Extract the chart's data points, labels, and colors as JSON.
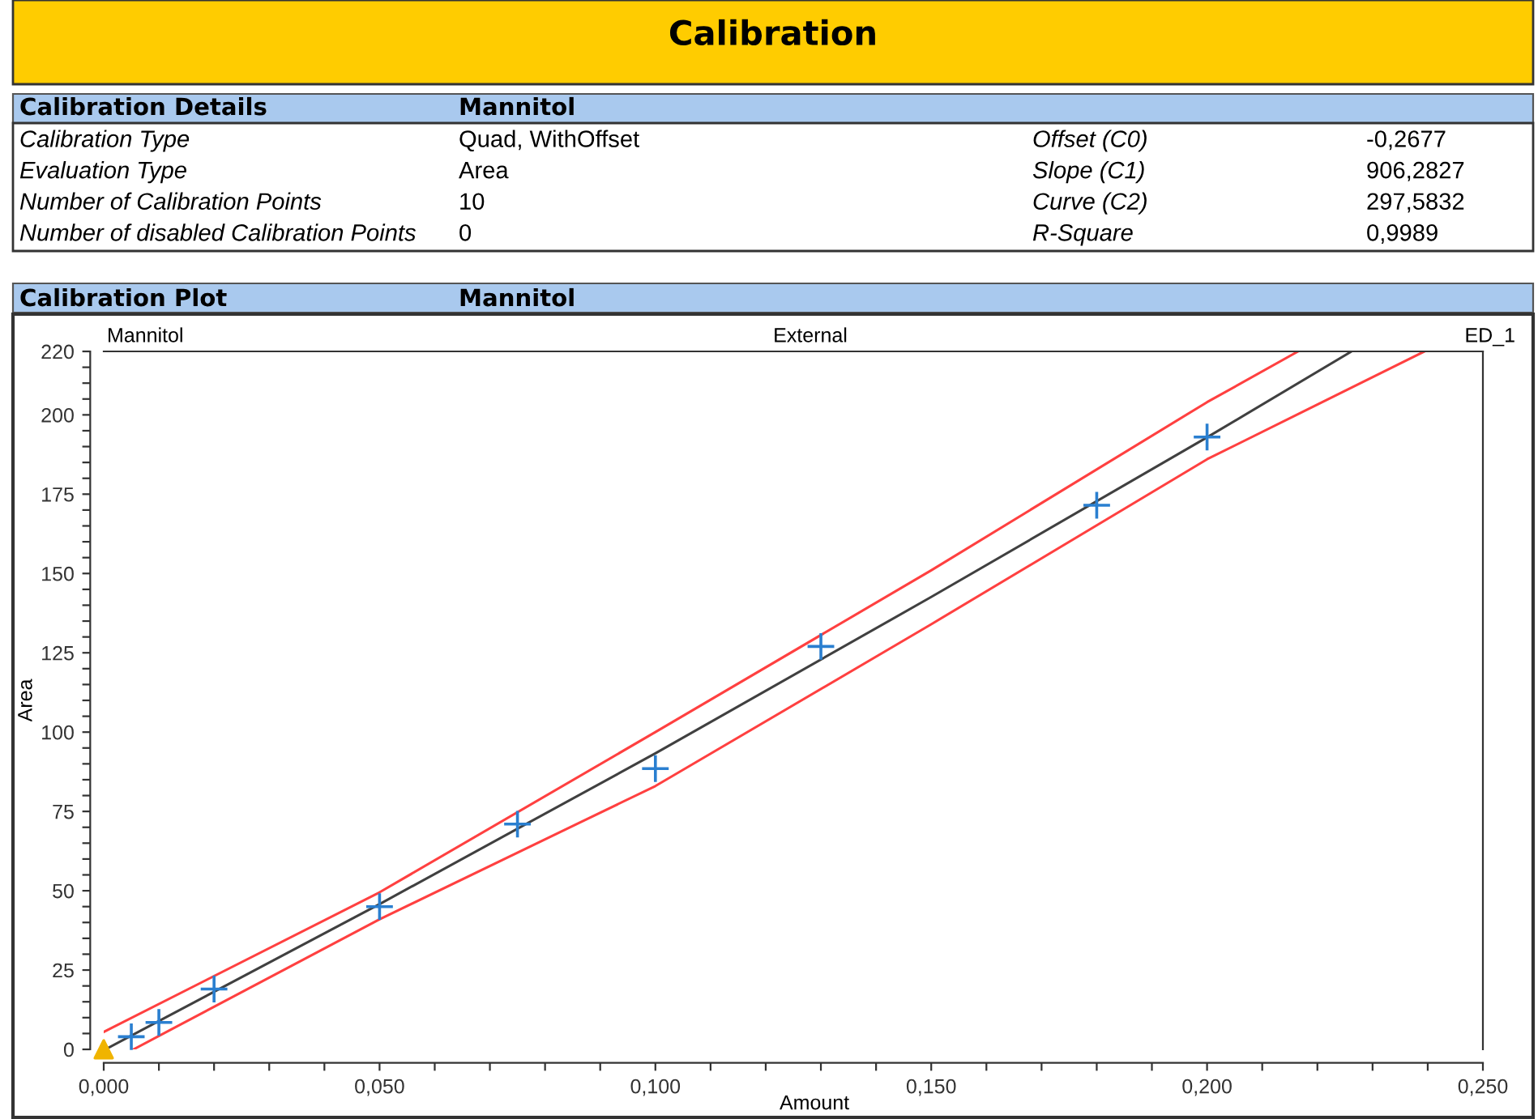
{
  "chart_data": {
    "type": "scatter",
    "title": "Calibration",
    "xlabel": "Amount",
    "ylabel": "Area",
    "annotations": [
      "Calibration Details",
      "Mannitol",
      "Calibration Type",
      "Quad, WithOffset",
      "Offset (C0)",
      "-0,2677",
      "Evaluation Type",
      "Area",
      "Slope (C1)",
      "906,2827",
      "Number of Calibration Points",
      "10",
      "Curve (C2)",
      "297,5832",
      "Number of disabled Calibration Points",
      "0",
      "R-Square",
      "0,9989",
      "Calibration Plot",
      "Mannitol",
      "Mannitol",
      "External",
      "ED_1"
    ],
    "series": [
      {
        "type": "line",
        "color": "#ff4040",
        "marker": "none",
        "x": [
          0,
          0.05,
          0.1,
          0.15,
          0.2,
          0.2165
        ],
        "values": [
          5.5,
          49.5,
          100,
          151,
          204,
          220
        ]
      },
      {
        "type": "line",
        "color": "#ff4040",
        "marker": "none",
        "x": [
          0.0054,
          0.05,
          0.1,
          0.15,
          0.2,
          0.2394
        ],
        "values": [
          0,
          41,
          83,
          134,
          186,
          220
        ]
      },
      {
        "type": "line",
        "color": "#404040",
        "marker": "none",
        "x": [
          0.0003,
          0.05,
          0.1,
          0.15,
          0.2,
          0.226
        ],
        "values": [
          0,
          45.8,
          93.3,
          142.6,
          192.9,
          219.8
        ]
      },
      {
        "color": "#2a7fd0",
        "marker": "cross",
        "x": [
          0.005,
          0.01,
          0.02,
          0.05,
          0.075,
          0.1,
          0.13,
          0.18,
          0.2
        ],
        "values": [
          4,
          8.5,
          19,
          45,
          71,
          88.5,
          127,
          171.5,
          193
        ]
      },
      {
        "color": "#f0b400",
        "marker": "triangle",
        "x": [
          0
        ],
        "values": [
          0
        ]
      }
    ],
    "xlim": [
      0,
      0.25
    ],
    "ylim": [
      0,
      220
    ],
    "xticks": [
      {
        "value": 0,
        "label": "0,000"
      },
      {
        "value": 0.01,
        "label": null
      },
      {
        "value": 0.02,
        "label": null
      },
      {
        "value": 0.03,
        "label": null
      },
      {
        "value": 0.04,
        "label": null
      },
      {
        "value": 0.05,
        "label": "0,050"
      },
      {
        "value": 0.06,
        "label": null
      },
      {
        "value": 0.07,
        "label": null
      },
      {
        "value": 0.08,
        "label": null
      },
      {
        "value": 0.09,
        "label": null
      },
      {
        "value": 0.1,
        "label": "0,100"
      },
      {
        "value": 0.11,
        "label": null
      },
      {
        "value": 0.12,
        "label": null
      },
      {
        "value": 0.13,
        "label": null
      },
      {
        "value": 0.14,
        "label": null
      },
      {
        "value": 0.15,
        "label": "0,150"
      },
      {
        "value": 0.16,
        "label": null
      },
      {
        "value": 0.17,
        "label": null
      },
      {
        "value": 0.18,
        "label": null
      },
      {
        "value": 0.19,
        "label": null
      },
      {
        "value": 0.2,
        "label": "0,200"
      },
      {
        "value": 0.21,
        "label": null
      },
      {
        "value": 0.22,
        "label": null
      },
      {
        "value": 0.23,
        "label": null
      },
      {
        "value": 0.24,
        "label": null
      },
      {
        "value": 0.25,
        "label": "0,250"
      }
    ],
    "yticks": [
      0,
      {
        "value": 5,
        "label": null
      },
      {
        "value": 10,
        "label": null
      },
      {
        "value": 15,
        "label": null
      },
      {
        "value": 20,
        "label": null
      },
      25,
      {
        "value": 30,
        "label": null
      },
      {
        "value": 35,
        "label": null
      },
      {
        "value": 40,
        "label": null
      },
      {
        "value": 45,
        "label": null
      },
      50,
      {
        "value": 55,
        "label": null
      },
      {
        "value": 60,
        "label": null
      },
      {
        "value": 65,
        "label": null
      },
      {
        "value": 70,
        "label": null
      },
      75,
      {
        "value": 80,
        "label": null
      },
      {
        "value": 85,
        "label": null
      },
      {
        "value": 90,
        "label": null
      },
      {
        "value": 95,
        "label": null
      },
      100,
      {
        "value": 105,
        "label": null
      },
      {
        "value": 110,
        "label": null
      },
      {
        "value": 115,
        "label": null
      },
      {
        "value": 120,
        "label": null
      },
      125,
      {
        "value": 130,
        "label": null
      },
      {
        "value": 135,
        "label": null
      },
      {
        "value": 140,
        "label": null
      },
      {
        "value": 145,
        "label": null
      },
      150,
      {
        "value": 155,
        "label": null
      },
      {
        "value": 160,
        "label": null
      },
      {
        "value": 165,
        "label": null
      },
      {
        "value": 170,
        "label": null
      },
      175,
      {
        "value": 180,
        "label": null
      },
      {
        "value": 185,
        "label": null
      },
      {
        "value": 190,
        "label": null
      },
      {
        "value": 195,
        "label": null
      },
      200,
      {
        "value": 205,
        "label": null
      },
      {
        "value": 210,
        "label": null
      },
      {
        "value": 215,
        "label": null
      },
      220
    ],
    "grid": false,
    "legend": false
  }
}
